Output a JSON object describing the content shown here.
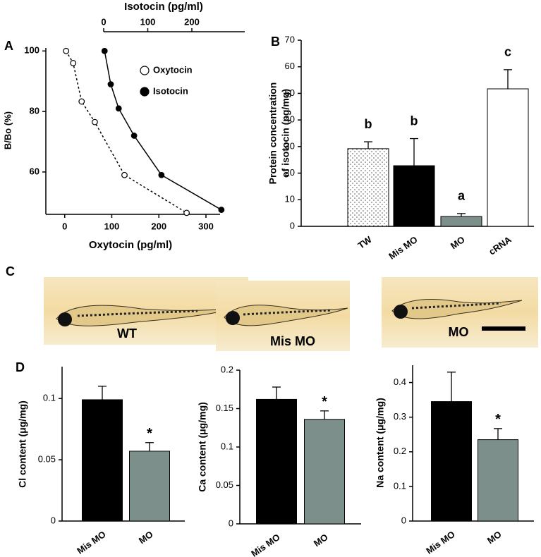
{
  "chart_data": [
    {
      "type": "line",
      "panel": "A",
      "x2label": "Isotocin (pg/ml)",
      "xlabel": "Oxytocin (pg/ml)",
      "ylabel": "B/Bo (%)",
      "xlim": [
        -40,
        330
      ],
      "xticks": [
        0,
        100,
        200,
        300
      ],
      "x2lim": [
        0,
        320
      ],
      "x2ticks": [
        0,
        100,
        200
      ],
      "ylim": [
        46,
        101
      ],
      "yticks": [
        60,
        80,
        100
      ],
      "legend": "upper right",
      "series": [
        {
          "name": "Oxytocin",
          "color": "#000000",
          "marker": "open",
          "linestyle": "dashed",
          "x": [
            3,
            18,
            36,
            64,
            127,
            259
          ],
          "values": [
            100,
            96,
            83.3,
            76.5,
            59,
            46.5
          ]
        },
        {
          "name": "Isotocin",
          "color": "#000000",
          "marker": "filled",
          "linestyle": "solid",
          "xaxis": "x2",
          "x": [
            2,
            16,
            34,
            69,
            131,
            267
          ],
          "values": [
            100,
            89,
            81,
            72,
            59,
            47.5
          ]
        }
      ]
    },
    {
      "type": "bar",
      "panel": "B",
      "ylabel": [
        "Protein concentration",
        "of isotocin (pg/mg)"
      ],
      "categories": [
        "TW",
        "Mis MO",
        "MO",
        "cRNA"
      ],
      "values": [
        29.2,
        22.8,
        3.7,
        51.7
      ],
      "errors": [
        2.6,
        10.2,
        1.1,
        7.2
      ],
      "colors": [
        "#ffffff",
        "#000000",
        "#7d8f8a",
        "#ffffff"
      ],
      "patterns": [
        "dots",
        "solid",
        "solid",
        "solid"
      ],
      "letters": [
        "b",
        "b",
        "a",
        "c"
      ],
      "ylim": [
        0,
        70
      ],
      "yticks": [
        0,
        10,
        20,
        30,
        40,
        50,
        60,
        70
      ]
    },
    {
      "type": "bar",
      "panel": "D",
      "ylabel": "Cl content (μg/mg)",
      "categories": [
        "Mis MO",
        "MO"
      ],
      "values": [
        0.099,
        0.057
      ],
      "errors": [
        0.011,
        0.007
      ],
      "colors": [
        "#000000",
        "#7d8f8a"
      ],
      "annotations": [
        {
          "category": 1,
          "text": "*"
        }
      ],
      "ylim": [
        0,
        0.126
      ],
      "yticks": [
        0,
        0.05,
        0.1
      ]
    },
    {
      "type": "bar",
      "ylabel": "Ca content (μg/mg)",
      "categories": [
        "Mis MO",
        "MO"
      ],
      "values": [
        0.162,
        0.136
      ],
      "errors": [
        0.016,
        0.011
      ],
      "colors": [
        "#000000",
        "#7d8f8a"
      ],
      "annotations": [
        {
          "category": 1,
          "text": "*"
        }
      ],
      "ylim": [
        0,
        0.2
      ],
      "yticks": [
        0,
        0.05,
        0.1,
        0.15,
        0.2
      ]
    },
    {
      "type": "bar",
      "ylabel": "Na content (μg/mg)",
      "categories": [
        "Mis MO",
        "MO"
      ],
      "values": [
        0.345,
        0.235
      ],
      "errors": [
        0.085,
        0.032
      ],
      "colors": [
        "#000000",
        "#7d8f8a"
      ],
      "annotations": [
        {
          "category": 1,
          "text": "*"
        }
      ],
      "ylim": [
        0,
        0.45
      ],
      "yticks": [
        0,
        0.1,
        0.2,
        0.3,
        0.4
      ]
    }
  ],
  "panel_c": {
    "label": "C",
    "captions": [
      "WT",
      "Mis MO",
      "MO"
    ]
  }
}
